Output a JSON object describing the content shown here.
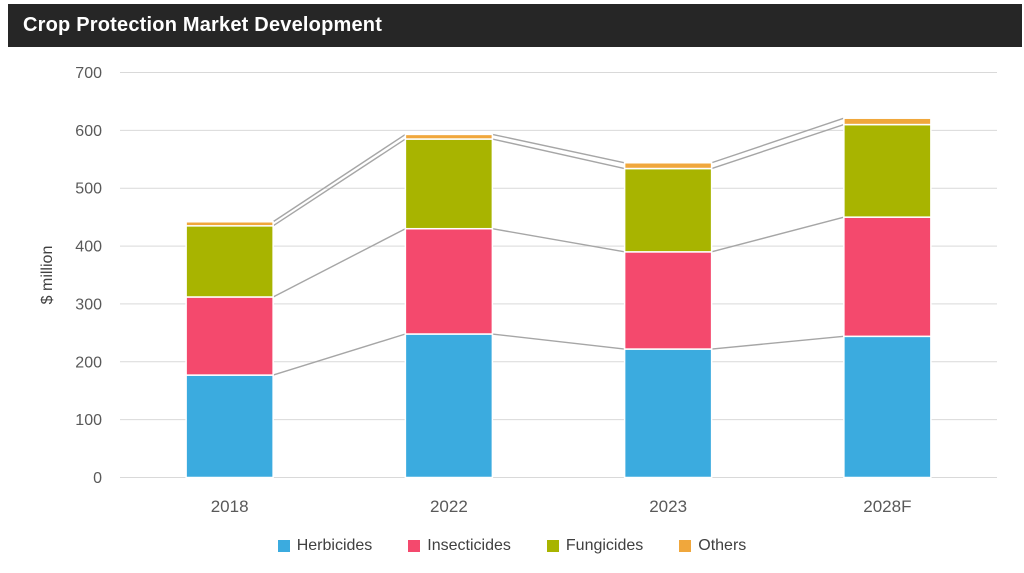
{
  "title_bar": {
    "title": "Crop Protection Market Development",
    "bg_color": "#262626",
    "text_color": "#FFFFFF"
  },
  "chart_data": {
    "type": "bar",
    "stacked": true,
    "title": "Crop Protection Market Development",
    "categories": [
      "2018",
      "2022",
      "2023",
      "2028F"
    ],
    "series": [
      {
        "name": "Herbicides",
        "color": "#3BABDF",
        "values": [
          177,
          248,
          222,
          244
        ]
      },
      {
        "name": "Insecticides",
        "color": "#F4496D",
        "values": [
          135,
          182,
          168,
          206
        ]
      },
      {
        "name": "Fungicides",
        "color": "#A8B400",
        "values": [
          123,
          155,
          144,
          160
        ]
      },
      {
        "name": "Others",
        "color": "#F0A73C",
        "values": [
          7,
          8,
          10,
          11
        ]
      }
    ],
    "ylabel": "$ million",
    "ylim": [
      0,
      700
    ],
    "yticks": [
      0,
      100,
      200,
      300,
      400,
      500,
      600,
      700
    ],
    "grid": "horizontal",
    "gridline_color": "#D9D9D9",
    "series_line_color": "#A6A6A6",
    "axis_text_color": "#595959",
    "ylabel_color": "#404040",
    "legend_position": "bottom"
  }
}
